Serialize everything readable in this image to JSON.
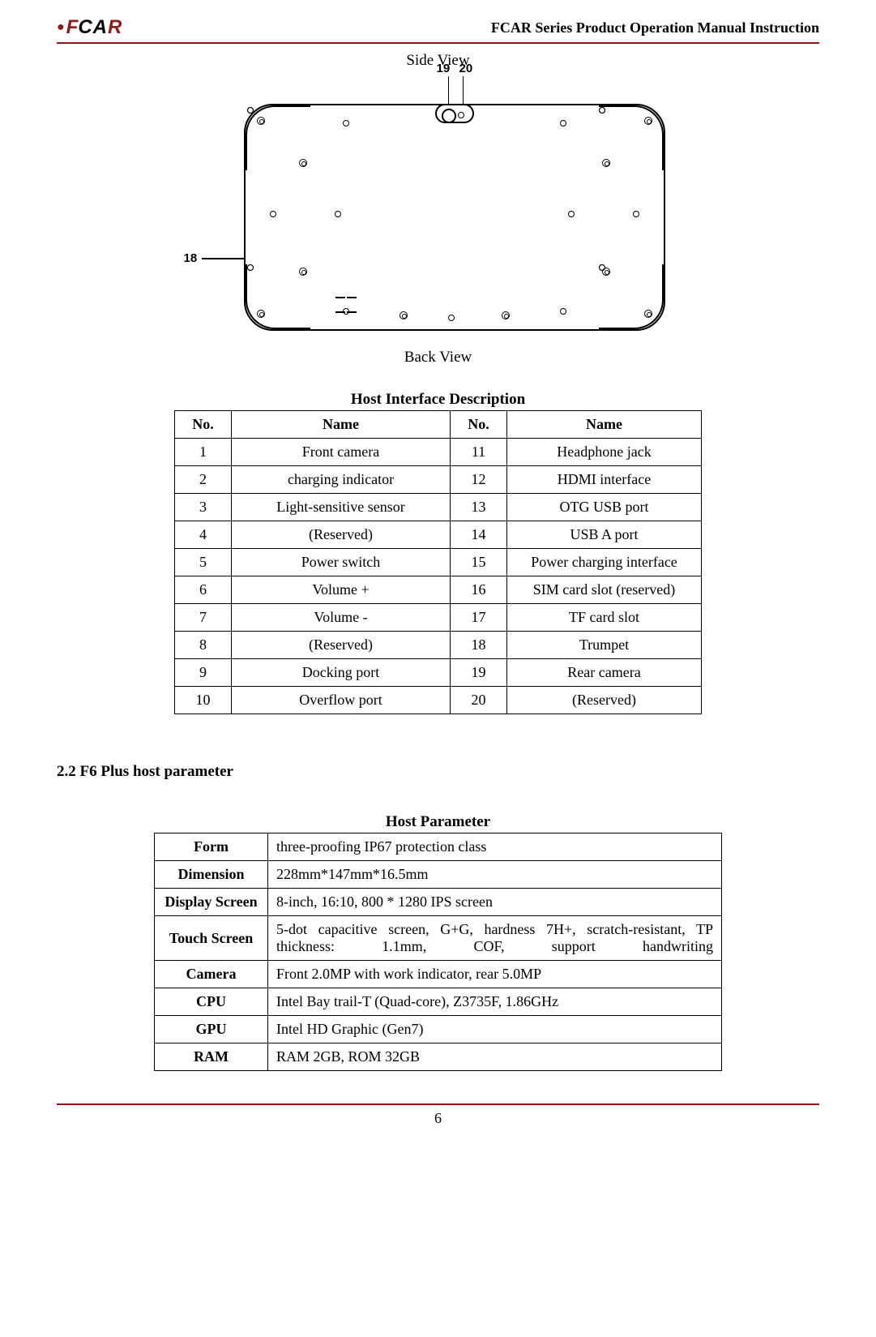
{
  "header": {
    "brand_prefix": "F",
    "brand_mid": "CA",
    "brand_suffix": "R",
    "title": "FCAR Series Product  Operation Manual Instruction"
  },
  "figure": {
    "top_label": "Side View",
    "bottom_label": "Back View",
    "callouts": {
      "c18": "18",
      "c19": "19",
      "c20": "20"
    }
  },
  "iface_table": {
    "title": "Host Interface Description",
    "headers": [
      "No.",
      "Name",
      "No.",
      "Name"
    ],
    "rows": [
      [
        "1",
        "Front camera",
        "11",
        "Headphone jack"
      ],
      [
        "2",
        "charging indicator",
        "12",
        "HDMI interface"
      ],
      [
        "3",
        "Light-sensitive sensor",
        "13",
        "OTG USB port"
      ],
      [
        "4",
        "(Reserved)",
        "14",
        "USB A port"
      ],
      [
        "5",
        "Power switch",
        "15",
        "Power charging interface"
      ],
      [
        "6",
        "Volume +",
        "16",
        "SIM card slot (reserved)"
      ],
      [
        "7",
        "Volume -",
        "17",
        "TF card slot"
      ],
      [
        "8",
        "(Reserved)",
        "18",
        "Trumpet"
      ],
      [
        "9",
        "Docking port",
        "19",
        "Rear camera"
      ],
      [
        "10",
        "Overflow port",
        "20",
        "(Reserved)"
      ]
    ]
  },
  "section": {
    "heading": "2.2    F6 Plus host parameter"
  },
  "param_table": {
    "title": "Host Parameter",
    "rows": [
      {
        "k": "Form",
        "v": "three-proofing IP67 protection class"
      },
      {
        "k": "Dimension",
        "v": "228mm*147mm*16.5mm"
      },
      {
        "k": "Display Screen",
        "v": "8-inch, 16:10, 800 * 1280 IPS screen"
      },
      {
        "k": "Touch Screen",
        "v": "5-dot capacitive screen, G+G, hardness 7H+, scratch-resistant, TP thickness: 1.1mm, COF, support handwriting",
        "justify": true
      },
      {
        "k": "Camera",
        "v": "Front 2.0MP with work indicator, rear 5.0MP"
      },
      {
        "k": "CPU",
        "v": "Intel Bay trail-T (Quad-core), Z3735F, 1.86GHz"
      },
      {
        "k": "GPU",
        "v": "Intel HD Graphic (Gen7)"
      },
      {
        "k": "RAM",
        "v": "RAM 2GB, ROM 32GB"
      }
    ]
  },
  "footer": {
    "page_no": "6"
  },
  "colors": {
    "accent": "#8b1a1a",
    "text": "#000000",
    "background": "#ffffff"
  }
}
